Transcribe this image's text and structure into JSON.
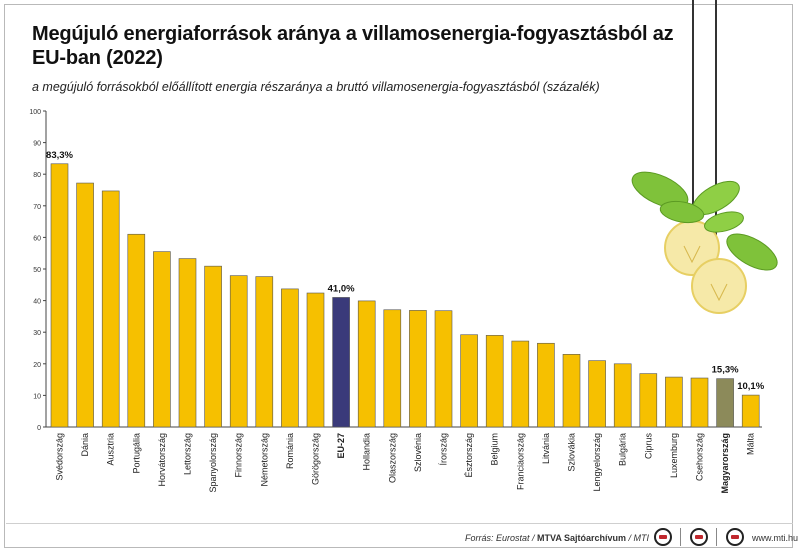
{
  "title": "Megújuló energiaforrások aránya a villamosenergia-fogyasztásból az EU-ban (2022)",
  "subtitle": "a megújuló forrásokból előállított energia részaránya a bruttó villamosenergia-fogyasztásból (százalék)",
  "source": {
    "prefix": "Forrás: Eurostat / ",
    "archive": "MTVA Sajtóarchívum",
    "suffix": " / MTI"
  },
  "website": "www.mti.hu",
  "colors": {
    "bar_default": "#f6c000",
    "bar_eu": "#3a3a7a",
    "bar_hungary": "#8c8a5a",
    "leaf": "#7fc23a",
    "bulb": "#f6e9a8"
  },
  "icons": [
    "lightbulb-icon",
    "leaf-icon"
  ],
  "chart_data": {
    "type": "bar",
    "categories": [
      "Svédország",
      "Dánia",
      "Ausztria",
      "Portugália",
      "Horvátország",
      "Lettország",
      "Spanyolország",
      "Finnország",
      "Németország",
      "Románia",
      "Görögország",
      "EU-27",
      "Hollandia",
      "Olaszország",
      "Szlovénia",
      "Írország",
      "Észtország",
      "Belgium",
      "Franciaország",
      "Litvánia",
      "Szlovákia",
      "Lengyelország",
      "Bulgária",
      "Ciprus",
      "Luxemburg",
      "Csehország",
      "Magyarország",
      "Málta"
    ],
    "values": [
      83.3,
      77.2,
      74.7,
      61.0,
      55.5,
      53.3,
      50.9,
      47.9,
      47.6,
      43.7,
      42.4,
      41.0,
      39.9,
      37.1,
      36.9,
      36.8,
      29.2,
      29.0,
      27.2,
      26.5,
      23.0,
      21.0,
      20.0,
      16.9,
      15.8,
      15.5,
      15.3,
      10.1
    ],
    "highlight": {
      "EU-27": "bar_eu",
      "Magyarország": "bar_hungary"
    },
    "bold_categories": [
      "EU-27",
      "Magyarország"
    ],
    "data_labels": [
      {
        "category": "Svédország",
        "text": "83,3%"
      },
      {
        "category": "EU-27",
        "text": "41,0%"
      },
      {
        "category": "Magyarország",
        "text": "15,3%"
      },
      {
        "category": "Málta",
        "text": "10,1%"
      }
    ],
    "yticks": [
      "0",
      "10",
      "20",
      "30",
      "40",
      "50",
      "60",
      "70",
      "80",
      "90",
      "100"
    ],
    "ylim": [
      0,
      100
    ],
    "grid": false,
    "legend": "none"
  }
}
